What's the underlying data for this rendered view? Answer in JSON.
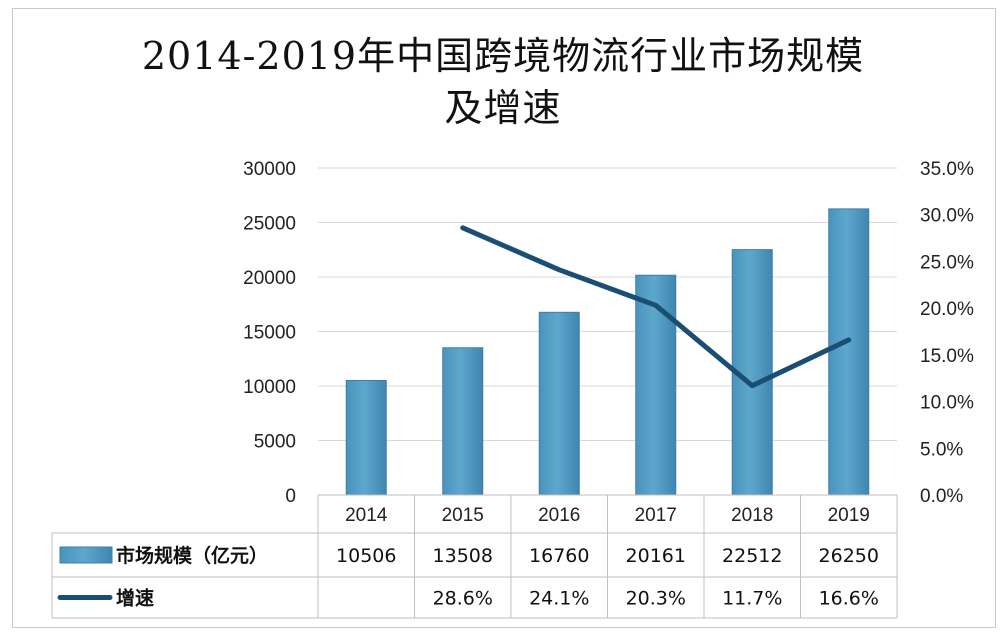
{
  "chart_data": {
    "type": "bar",
    "title": "2014-2019年中国跨境物流行业市场规模\n及增速",
    "categories": [
      "2014",
      "2015",
      "2016",
      "2017",
      "2018",
      "2019"
    ],
    "series": [
      {
        "name": "市场规模（亿元）",
        "type": "bar",
        "axis": "left",
        "values": [
          10506,
          13508,
          16760,
          20161,
          22512,
          26250
        ],
        "labels": [
          "10506",
          "13508",
          "16760",
          "20161",
          "22512",
          "26250"
        ]
      },
      {
        "name": "增速",
        "type": "line",
        "axis": "right",
        "values": [
          null,
          28.6,
          24.1,
          20.3,
          11.7,
          16.6
        ],
        "labels": [
          "",
          "28.6%",
          "24.1%",
          "20.3%",
          "11.7%",
          "16.6%"
        ]
      }
    ],
    "y_left": {
      "ylim": [
        0,
        30000
      ],
      "ticks": [
        "0",
        "5000",
        "10000",
        "15000",
        "20000",
        "25000",
        "30000"
      ]
    },
    "y_right": {
      "ylim": [
        0,
        35
      ],
      "ticks": [
        "0.0%",
        "5.0%",
        "10.0%",
        "15.0%",
        "20.0%",
        "25.0%",
        "30.0%",
        "35.0%"
      ]
    },
    "grid": true,
    "legend": "data-table",
    "colors": {
      "bar": "#5ea7cc",
      "bar_edge": "#3d7fa6",
      "line": "#1a4f73",
      "grid": "#d9d9d9"
    }
  }
}
